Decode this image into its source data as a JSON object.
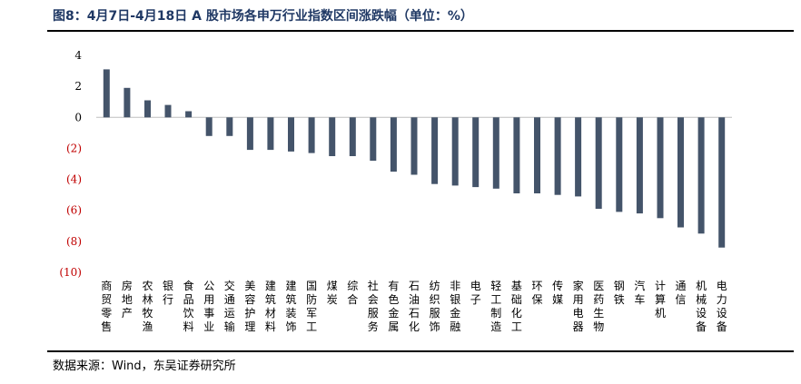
{
  "title": "图8：4月7日-4月18日 A 股市场各申万行业指数区间涨跌幅（单位：%）",
  "source": "数据来源：Wind，东吴证券研究所",
  "colors": {
    "bar": "#44546a",
    "negative_tick": "#c00000",
    "positive_tick": "#000000",
    "axis": "#bfbfbf"
  },
  "chart_data": {
    "type": "bar",
    "title": "图8：4月7日-4月18日 A 股市场各申万行业指数区间涨跌幅（单位：%）",
    "xlabel": "",
    "ylabel": "",
    "ylim": [
      -10,
      4
    ],
    "yticks": [
      4,
      2,
      0,
      -2,
      -4,
      -6,
      -8,
      -10
    ],
    "ytick_labels": [
      "4",
      "2",
      "0",
      "(2)",
      "(4)",
      "(6)",
      "(8)",
      "(10)"
    ],
    "grid": false,
    "legend": "none",
    "categories": [
      "商贸零售",
      "房地产",
      "农林牧渔",
      "银行",
      "食品饮料",
      "公用事业",
      "交通运输",
      "美容护理",
      "建筑材料",
      "建筑装饰",
      "国防军工",
      "煤炭",
      "综合",
      "社会服务",
      "有色金属",
      "石油石化",
      "纺织服饰",
      "非银金融",
      "电子",
      "轻工制造",
      "基础化工",
      "环保",
      "传媒",
      "家用电器",
      "医药生物",
      "钢铁",
      "汽车",
      "计算机",
      "通信",
      "机械设备",
      "电力设备"
    ],
    "values": [
      3.1,
      1.9,
      1.1,
      0.8,
      0.4,
      -1.2,
      -1.2,
      -2.1,
      -2.1,
      -2.2,
      -2.3,
      -2.5,
      -2.5,
      -2.8,
      -3.5,
      -3.7,
      -4.3,
      -4.4,
      -4.5,
      -4.6,
      -4.9,
      -4.9,
      -5.0,
      -5.1,
      -5.9,
      -6.1,
      -6.2,
      -6.5,
      -7.1,
      -7.5,
      -8.4
    ]
  }
}
